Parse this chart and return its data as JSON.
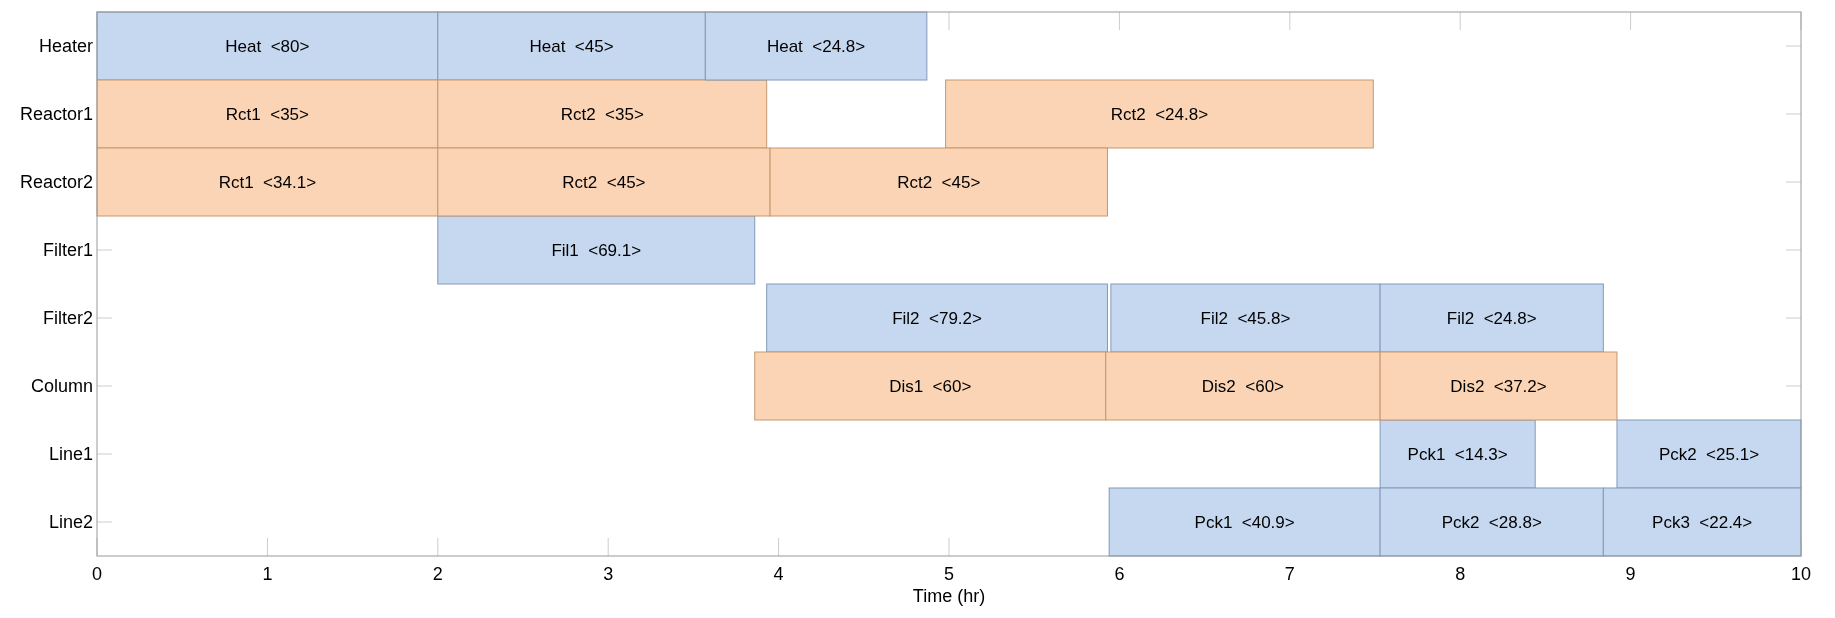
{
  "chart_data": {
    "type": "bar",
    "orientation": "horizontal",
    "xlabel": "Time (hr)",
    "categories": [
      "Heater",
      "Reactor1",
      "Reactor2",
      "Filter1",
      "Filter2",
      "Column",
      "Line1",
      "Line2"
    ],
    "xlim": [
      0,
      10
    ],
    "xticks": [
      0,
      1,
      2,
      3,
      4,
      5,
      6,
      7,
      8,
      9,
      10
    ],
    "grid": false,
    "series": [
      {
        "base": [
          0,
          0,
          0,
          2,
          3.93,
          3.86,
          7.53,
          5.94
        ],
        "values": [
          2,
          2,
          2,
          1.86,
          2.0,
          2.06,
          0.91,
          1.59
        ],
        "colors": [
          "#c6d8f0",
          "#fad4b4",
          "#fad4b4",
          "#c6d8f0",
          "#c6d8f0",
          "#fad4b4",
          "#c6d8f0",
          "#c6d8f0"
        ],
        "value_labels": [
          "Heat  <80>",
          "Rct1  <35>",
          "Rct1  <34.1>",
          "Fil1  <69.1>",
          "Fil2  <79.2>",
          "Dis1  <60>",
          "Pck1  <14.3>",
          "Pck1  <40.9>"
        ]
      },
      {
        "base": [
          2,
          2,
          2,
          null,
          5.95,
          5.92,
          8.92,
          7.53
        ],
        "values": [
          1.57,
          1.93,
          1.95,
          null,
          1.58,
          1.61,
          1.08,
          1.31
        ],
        "colors": [
          "#c6d8f0",
          "#fad4b4",
          "#fad4b4",
          null,
          "#c6d8f0",
          "#fad4b4",
          "#c6d8f0",
          "#c6d8f0"
        ],
        "value_labels": [
          "Heat  <45>",
          "Rct2  <35>",
          "Rct2  <45>",
          null,
          "Fil2  <45.8>",
          "Dis2  <60>",
          "Pck2  <25.1>",
          "Pck2  <28.8>"
        ]
      },
      {
        "base": [
          3.57,
          4.98,
          3.95,
          null,
          7.53,
          7.53,
          null,
          8.84
        ],
        "values": [
          1.3,
          2.51,
          1.98,
          null,
          1.31,
          1.39,
          null,
          1.16
        ],
        "colors": [
          "#c6d8f0",
          "#fad4b4",
          "#fad4b4",
          null,
          "#c6d8f0",
          "#fad4b4",
          null,
          "#c6d8f0"
        ],
        "value_labels": [
          "Heat  <24.8>",
          "Rct2  <24.8>",
          "Rct2  <45>",
          null,
          "Fil2  <24.8>",
          "Dis2  <37.2>",
          null,
          "Pck3  <22.4>"
        ]
      }
    ]
  }
}
